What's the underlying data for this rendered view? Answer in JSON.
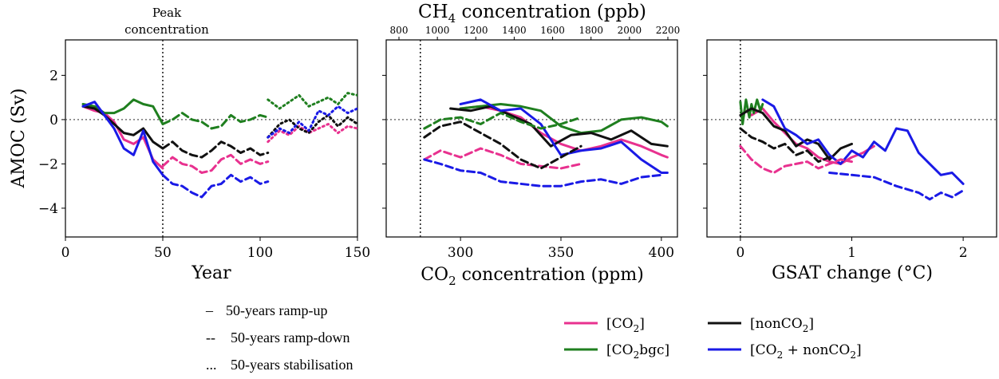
{
  "colors": {
    "co2": "#e8318f",
    "co2bgc": "#1f7f1f",
    "nonco2": "#111111",
    "both": "#1a1ae6"
  },
  "chart_data": [
    {
      "type": "line",
      "panel": "left",
      "xlabel": "Year",
      "ylabel": "AMOC (Sv)",
      "xlim": [
        0,
        150
      ],
      "ylim": [
        -5.3,
        3.6
      ],
      "xticks": [
        "0",
        "50",
        "100",
        "150"
      ],
      "yticks": [
        "2",
        "0",
        "−2",
        "−4"
      ],
      "annotation": "Peak concentration",
      "annotation_lines": [
        "Peak",
        "concentration"
      ],
      "vline_x": 50,
      "series": [
        {
          "style": "solid",
          "color": "co2",
          "x": [
            9,
            15,
            20,
            25,
            30,
            35,
            40,
            45,
            50
          ],
          "y": [
            0.6,
            0.4,
            0.3,
            -0.1,
            -0.9,
            -1.1,
            -0.8,
            -1.8,
            -2.2
          ]
        },
        {
          "style": "solid",
          "color": "co2bgc",
          "x": [
            9,
            15,
            20,
            25,
            30,
            35,
            40,
            45,
            50
          ],
          "y": [
            0.7,
            0.6,
            0.3,
            0.3,
            0.5,
            0.9,
            0.7,
            0.6,
            -0.2
          ]
        },
        {
          "style": "solid",
          "color": "nonco2",
          "x": [
            9,
            15,
            20,
            25,
            30,
            35,
            40,
            45,
            50
          ],
          "y": [
            0.6,
            0.5,
            0.2,
            -0.2,
            -0.6,
            -0.7,
            -0.4,
            -1.0,
            -1.3
          ]
        },
        {
          "style": "solid",
          "color": "both",
          "x": [
            9,
            15,
            20,
            25,
            30,
            35,
            40,
            45,
            50
          ],
          "y": [
            0.6,
            0.8,
            0.2,
            -0.4,
            -1.3,
            -1.6,
            -0.5,
            -1.9,
            -2.5
          ]
        },
        {
          "style": "dashed",
          "color": "co2",
          "x": [
            50,
            55,
            60,
            65,
            70,
            75,
            80,
            85,
            90,
            95,
            100,
            104
          ],
          "y": [
            -2.1,
            -1.7,
            -2.0,
            -2.1,
            -2.4,
            -2.3,
            -1.8,
            -1.6,
            -2.0,
            -1.8,
            -2.0,
            -1.9
          ]
        },
        {
          "style": "dashed",
          "color": "co2bgc",
          "x": [
            50,
            55,
            60,
            65,
            70,
            75,
            80,
            85,
            90,
            95,
            100,
            104
          ],
          "y": [
            -0.2,
            0.0,
            0.3,
            0.0,
            -0.1,
            -0.4,
            -0.3,
            0.2,
            -0.1,
            0.0,
            0.2,
            0.1
          ]
        },
        {
          "style": "dashed",
          "color": "nonco2",
          "x": [
            50,
            55,
            60,
            65,
            70,
            75,
            80,
            85,
            90,
            95,
            100,
            104
          ],
          "y": [
            -1.3,
            -1.0,
            -1.4,
            -1.6,
            -1.7,
            -1.4,
            -1.0,
            -1.2,
            -1.5,
            -1.3,
            -1.6,
            -1.5
          ]
        },
        {
          "style": "dashed",
          "color": "both",
          "x": [
            50,
            55,
            60,
            65,
            70,
            75,
            80,
            85,
            90,
            95,
            100,
            104
          ],
          "y": [
            -2.5,
            -2.9,
            -3.0,
            -3.3,
            -3.5,
            -3.0,
            -2.9,
            -2.5,
            -2.8,
            -2.6,
            -2.9,
            -2.8
          ]
        },
        {
          "style": "dotted",
          "color": "co2",
          "x": [
            104,
            110,
            115,
            120,
            125,
            130,
            135,
            140,
            145,
            150
          ],
          "y": [
            -1.0,
            -0.5,
            -0.7,
            -0.3,
            -0.6,
            -0.4,
            -0.2,
            -0.6,
            -0.3,
            -0.4
          ]
        },
        {
          "style": "dotted",
          "color": "co2bgc",
          "x": [
            104,
            110,
            115,
            120,
            125,
            130,
            135,
            140,
            145,
            150
          ],
          "y": [
            0.9,
            0.5,
            0.8,
            1.1,
            0.6,
            0.8,
            1.0,
            0.7,
            1.2,
            1.1
          ]
        },
        {
          "style": "dotted",
          "color": "nonco2",
          "x": [
            104,
            110,
            115,
            120,
            125,
            130,
            135,
            140,
            145,
            150
          ],
          "y": [
            -0.8,
            -0.2,
            0.0,
            -0.4,
            -0.6,
            -0.1,
            0.2,
            -0.3,
            0.1,
            -0.2
          ]
        },
        {
          "style": "dotted",
          "color": "both",
          "x": [
            104,
            110,
            115,
            120,
            125,
            130,
            135,
            140,
            145,
            150
          ],
          "y": [
            -0.8,
            -0.4,
            -0.6,
            -0.1,
            -0.5,
            0.4,
            0.2,
            0.6,
            0.3,
            0.5
          ]
        }
      ]
    },
    {
      "type": "line",
      "panel": "middle",
      "xlabel": "CO₂ concentration (ppm)",
      "xlabel_main": "CO",
      "xlabel_sub": "2",
      "xlabel_rest": " concentration (ppm)",
      "top_xlabel": "CH₄ concentration (ppb)",
      "top_xlabel_main": "CH",
      "top_xlabel_sub": "4",
      "top_xlabel_rest": " concentration (ppb)",
      "xlim": [
        263,
        408
      ],
      "ylim": [
        -5.3,
        3.6
      ],
      "xticks": [
        "300",
        "350",
        "400"
      ],
      "top_xticks": [
        "800",
        "1000",
        "1200",
        "1400",
        "1600",
        "1800",
        "2000",
        "2200"
      ],
      "vline_x": 280,
      "series": [
        {
          "style": "solid",
          "color": "co2",
          "x": [
            300,
            310,
            320,
            330,
            340,
            350,
            360,
            370,
            380,
            390,
            400,
            403
          ],
          "y": [
            0.5,
            0.6,
            0.4,
            0.1,
            -0.6,
            -1.1,
            -1.4,
            -1.2,
            -0.9,
            -1.2,
            -1.6,
            -1.7
          ]
        },
        {
          "style": "solid",
          "color": "co2bgc",
          "x": [
            300,
            310,
            320,
            330,
            340,
            350,
            360,
            370,
            380,
            390,
            400,
            403
          ],
          "y": [
            0.5,
            0.6,
            0.7,
            0.6,
            0.4,
            -0.3,
            -0.6,
            -0.5,
            0.0,
            0.1,
            -0.1,
            -0.3
          ]
        },
        {
          "style": "solid",
          "color": "nonco2",
          "x": [
            295,
            305,
            315,
            325,
            335,
            345,
            355,
            365,
            375,
            385,
            395,
            403
          ],
          "y": [
            0.5,
            0.4,
            0.6,
            0.2,
            -0.2,
            -1.2,
            -0.7,
            -0.6,
            -0.9,
            -0.5,
            -1.1,
            -1.2
          ]
        },
        {
          "style": "solid",
          "color": "both",
          "x": [
            300,
            310,
            320,
            330,
            340,
            350,
            360,
            370,
            380,
            390,
            400,
            403
          ],
          "y": [
            0.7,
            0.9,
            0.4,
            0.5,
            -0.2,
            -1.6,
            -1.4,
            -1.3,
            -1.0,
            -1.8,
            -2.4,
            -2.4
          ]
        },
        {
          "style": "dashed",
          "color": "co2",
          "x": [
            282,
            290,
            300,
            310,
            320,
            330,
            340,
            350,
            360
          ],
          "y": [
            -1.8,
            -1.4,
            -1.7,
            -1.3,
            -1.6,
            -2.0,
            -2.1,
            -2.2,
            -2.0
          ]
        },
        {
          "style": "dashed",
          "color": "co2bgc",
          "x": [
            282,
            290,
            300,
            310,
            320,
            330,
            340,
            350,
            360
          ],
          "y": [
            -0.4,
            0.0,
            0.1,
            -0.2,
            0.3,
            -0.1,
            -0.4,
            -0.2,
            0.1
          ]
        },
        {
          "style": "dashed",
          "color": "nonco2",
          "x": [
            282,
            290,
            300,
            310,
            320,
            330,
            340,
            350,
            360
          ],
          "y": [
            -0.8,
            -0.3,
            -0.1,
            -0.6,
            -1.1,
            -1.8,
            -2.2,
            -1.7,
            -1.2
          ]
        },
        {
          "style": "dashed",
          "color": "both",
          "x": [
            282,
            290,
            300,
            310,
            320,
            330,
            340,
            350,
            360,
            370,
            380,
            390,
            400
          ],
          "y": [
            -1.8,
            -2.0,
            -2.3,
            -2.4,
            -2.8,
            -2.9,
            -3.0,
            -3.0,
            -2.8,
            -2.7,
            -2.9,
            -2.6,
            -2.5
          ]
        }
      ]
    },
    {
      "type": "line",
      "panel": "right",
      "xlabel": "GSAT change (°C)",
      "xlim": [
        -0.3,
        2.3
      ],
      "ylim": [
        -5.3,
        3.6
      ],
      "xticks": [
        "0",
        "1",
        "2"
      ],
      "vline_x": 0,
      "series": [
        {
          "style": "solid",
          "color": "co2",
          "x": [
            0.05,
            0.1,
            0.2,
            0.3,
            0.4,
            0.5,
            0.6,
            0.7,
            0.8,
            0.9,
            1.0,
            1.1,
            1.2
          ],
          "y": [
            0.4,
            0.2,
            0.5,
            -0.1,
            -0.6,
            -1.1,
            -1.3,
            -1.7,
            -1.9,
            -2.0,
            -1.7,
            -1.5,
            -1.2
          ]
        },
        {
          "style": "solid",
          "color": "co2bgc",
          "x": [
            0.0,
            0.02,
            0.05,
            0.08,
            0.1,
            0.12,
            0.15,
            0.18,
            0.2
          ],
          "y": [
            0.8,
            -0.2,
            0.9,
            0.1,
            0.7,
            0.3,
            0.9,
            0.4,
            0.7
          ]
        },
        {
          "style": "solid",
          "color": "nonco2",
          "x": [
            0.0,
            0.1,
            0.2,
            0.3,
            0.4,
            0.5,
            0.6,
            0.7,
            0.8,
            0.9,
            1.0
          ],
          "y": [
            0.2,
            0.5,
            0.3,
            -0.3,
            -0.5,
            -1.2,
            -0.9,
            -1.1,
            -1.8,
            -1.3,
            -1.1
          ]
        },
        {
          "style": "solid",
          "color": "both",
          "x": [
            0.2,
            0.3,
            0.4,
            0.5,
            0.6,
            0.7,
            0.8,
            0.9,
            1.0,
            1.1,
            1.2,
            1.3,
            1.4,
            1.5,
            1.6,
            1.7,
            1.8,
            1.9,
            2.0
          ],
          "y": [
            0.9,
            0.6,
            -0.4,
            -0.7,
            -1.1,
            -0.9,
            -1.6,
            -2.0,
            -1.4,
            -1.7,
            -1.0,
            -1.4,
            -0.4,
            -0.5,
            -1.5,
            -2.0,
            -2.5,
            -2.4,
            -2.9
          ]
        },
        {
          "style": "dashed",
          "color": "co2",
          "x": [
            0.0,
            0.1,
            0.2,
            0.3,
            0.4,
            0.5,
            0.6,
            0.7,
            0.8,
            0.9,
            1.0
          ],
          "y": [
            -1.2,
            -1.8,
            -2.2,
            -2.4,
            -2.1,
            -2.0,
            -1.9,
            -2.2,
            -2.0,
            -1.8,
            -1.9
          ]
        },
        {
          "style": "dashed",
          "color": "nonco2",
          "x": [
            0.0,
            0.1,
            0.2,
            0.3,
            0.4,
            0.5,
            0.6,
            0.7,
            0.8
          ],
          "y": [
            -0.4,
            -0.8,
            -1.0,
            -1.3,
            -1.1,
            -1.6,
            -1.4,
            -1.9,
            -1.7
          ]
        },
        {
          "style": "dashed",
          "color": "both",
          "x": [
            0.8,
            1.0,
            1.2,
            1.4,
            1.6,
            1.7,
            1.8,
            1.9,
            2.0
          ],
          "y": [
            -2.4,
            -2.5,
            -2.6,
            -3.0,
            -3.3,
            -3.6,
            -3.3,
            -3.5,
            -3.2
          ]
        }
      ]
    }
  ],
  "linestyle_legend": [
    {
      "marker": "–",
      "text": "50-years ramp-up"
    },
    {
      "marker": "--",
      "text": "50-years ramp-down"
    },
    {
      "marker": "...",
      "text": "50-years stabilisation"
    }
  ],
  "color_legend": [
    {
      "color": "co2",
      "label": "[CO",
      "sub": "2",
      "after": "]"
    },
    {
      "color": "nonco2",
      "label": "[nonCO",
      "sub": "2",
      "after": "]"
    },
    {
      "color": "co2bgc",
      "label": "[CO",
      "sub": "2",
      "after": "bgc]"
    },
    {
      "color": "both",
      "label": "[CO",
      "sub": "2",
      "after": " + nonCO",
      "sub2": "2",
      "after2": "]"
    }
  ]
}
